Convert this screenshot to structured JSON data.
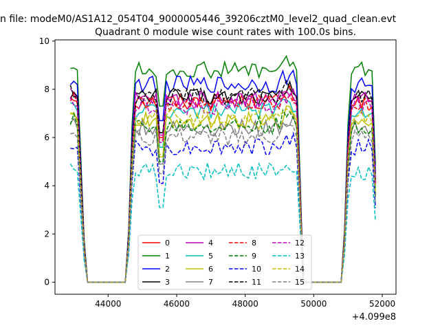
{
  "figure": {
    "suptitle": "n file: modeM0/AS1A12_054T04_9000005446_39206cztM0_level2_quad_clean.evt",
    "title": "Quadrant 0 module wise count rates with 100.0s bins.",
    "offset_label": "+4.099e8"
  },
  "chart_data": {
    "type": "line",
    "title": "Quadrant 0 module wise count rates with 100.0s bins.",
    "xlabel": "",
    "ylabel": "",
    "x_offset": 409900000,
    "xlim": [
      42450,
      52400
    ],
    "ylim": [
      -0.5,
      10.05
    ],
    "xticks": [
      44000,
      46000,
      48000,
      50000,
      52000
    ],
    "xtick_labels": [
      "44000",
      "46000",
      "48000",
      "50000",
      "52000"
    ],
    "yticks": [
      0,
      2,
      4,
      6,
      8,
      10
    ],
    "ytick_labels": [
      "0",
      "2",
      "4",
      "6",
      "8",
      "10"
    ],
    "grid": false,
    "legend_location": "lower center",
    "legend_columns": 4,
    "segments": [
      {
        "start": 42900,
        "end": 43100,
        "plateau": true
      },
      {
        "start": 43100,
        "end": 43350,
        "plateau": false
      },
      {
        "start": 43350,
        "end": 44550,
        "plateau": false,
        "zero": true
      },
      {
        "start": 44550,
        "end": 44750,
        "plateau": false,
        "rise": true
      },
      {
        "start": 44750,
        "end": 49500,
        "plateau": true
      },
      {
        "start": 49500,
        "end": 49700,
        "plateau": false
      },
      {
        "start": 49700,
        "end": 50850,
        "plateau": false,
        "zero": true
      },
      {
        "start": 50850,
        "end": 51050,
        "plateau": false,
        "rise": true
      },
      {
        "start": 51050,
        "end": 51800,
        "plateau": true
      }
    ],
    "series": [
      {
        "name": "0",
        "color": "#ff0000",
        "dash": "solid",
        "level": 7.5
      },
      {
        "name": "1",
        "color": "#008000",
        "dash": "solid",
        "level": 8.8
      },
      {
        "name": "2",
        "color": "#0000ff",
        "dash": "solid",
        "level": 8.2
      },
      {
        "name": "3",
        "color": "#000000",
        "dash": "solid",
        "level": 7.7
      },
      {
        "name": "4",
        "color": "#bf00bf",
        "dash": "solid",
        "level": 7.6
      },
      {
        "name": "5",
        "color": "#00bfbf",
        "dash": "solid",
        "level": 7.1
      },
      {
        "name": "6",
        "color": "#bfbf00",
        "dash": "solid",
        "level": 6.7
      },
      {
        "name": "7",
        "color": "#808080",
        "dash": "solid",
        "level": 6.4
      },
      {
        "name": "8",
        "color": "#ff0000",
        "dash": "dashed",
        "level": 7.4
      },
      {
        "name": "9",
        "color": "#008000",
        "dash": "dashed",
        "level": 6.5
      },
      {
        "name": "10",
        "color": "#0000ff",
        "dash": "dashed",
        "level": 5.6
      },
      {
        "name": "11",
        "color": "#000000",
        "dash": "dashed",
        "level": 7.7
      },
      {
        "name": "12",
        "color": "#bf00bf",
        "dash": "dashed",
        "level": 7.3
      },
      {
        "name": "13",
        "color": "#00bfbf",
        "dash": "dashed",
        "level": 4.6
      },
      {
        "name": "14",
        "color": "#bfbf00",
        "dash": "dashed",
        "level": 6.8
      },
      {
        "name": "15",
        "color": "#808080",
        "dash": "dashed",
        "level": 6.0
      }
    ]
  }
}
